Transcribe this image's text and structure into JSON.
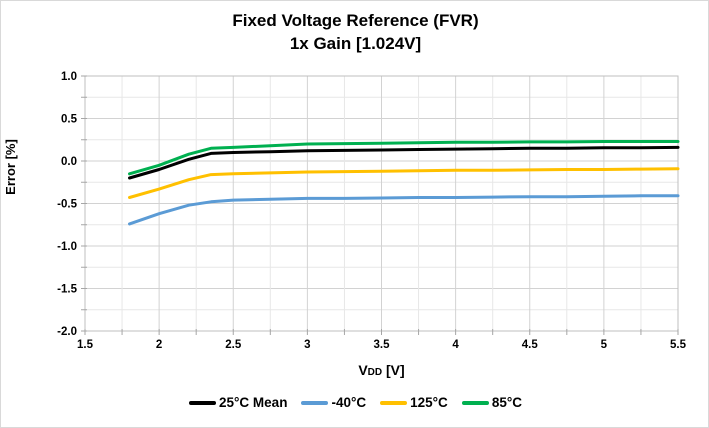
{
  "title": {
    "line1": "Fixed Voltage Reference (FVR)",
    "line2": "1x Gain [1.024V]"
  },
  "chart_data": {
    "type": "line",
    "title": "Fixed Voltage Reference (FVR) 1x Gain [1.024V]",
    "ylabel": "Error [%]",
    "xlabel": {
      "main": "V",
      "sub": "DD",
      "rest": " [V]"
    },
    "xlim": [
      1.5,
      5.5
    ],
    "ylim": [
      -2.0,
      1.0
    ],
    "x_major_ticks": [
      1.5,
      2,
      2.5,
      3,
      3.5,
      4,
      4.5,
      5,
      5.5
    ],
    "x_tick_labels": [
      "1.5",
      "2",
      "2.5",
      "3",
      "3.5",
      "4",
      "4.5",
      "5",
      "5.5"
    ],
    "y_major_ticks": [
      1.0,
      0.5,
      0.0,
      -0.5,
      -1.0,
      -1.5,
      -2.0
    ],
    "y_tick_labels": [
      "1.0",
      "0.5",
      "0.0",
      "-0.5",
      "-1.0",
      "-1.5",
      "-2.0"
    ],
    "minor_step": 0.25,
    "grid": true,
    "legend_position": "bottom",
    "x": [
      1.8,
      2.0,
      2.2,
      2.35,
      2.5,
      2.75,
      3.0,
      3.25,
      3.5,
      3.75,
      4.0,
      4.25,
      4.5,
      4.75,
      5.0,
      5.25,
      5.5
    ],
    "series": [
      {
        "name": "25°C Mean",
        "color": "#000000",
        "values": [
          -0.2,
          -0.1,
          0.02,
          0.09,
          0.1,
          0.11,
          0.12,
          0.125,
          0.13,
          0.135,
          0.14,
          0.145,
          0.15,
          0.15,
          0.155,
          0.155,
          0.16
        ]
      },
      {
        "name": "-40°C",
        "color": "#5B9BD5",
        "values": [
          -0.74,
          -0.62,
          -0.52,
          -0.48,
          -0.46,
          -0.45,
          -0.44,
          -0.44,
          -0.435,
          -0.43,
          -0.43,
          -0.425,
          -0.42,
          -0.42,
          -0.415,
          -0.41,
          -0.41
        ]
      },
      {
        "name": "125°C",
        "color": "#FFC000",
        "values": [
          -0.43,
          -0.33,
          -0.22,
          -0.16,
          -0.15,
          -0.14,
          -0.13,
          -0.125,
          -0.12,
          -0.115,
          -0.11,
          -0.11,
          -0.105,
          -0.1,
          -0.1,
          -0.095,
          -0.09
        ]
      },
      {
        "name": "85°C",
        "color": "#00B050",
        "values": [
          -0.15,
          -0.05,
          0.08,
          0.15,
          0.16,
          0.18,
          0.2,
          0.205,
          0.21,
          0.215,
          0.22,
          0.22,
          0.225,
          0.225,
          0.23,
          0.23,
          0.23
        ]
      }
    ],
    "colors": {
      "minor_grid": "#e7e7e7",
      "major_grid": "#d2d2d2",
      "axis": "#bfbfbf",
      "tick": "#a6a6a6"
    }
  }
}
